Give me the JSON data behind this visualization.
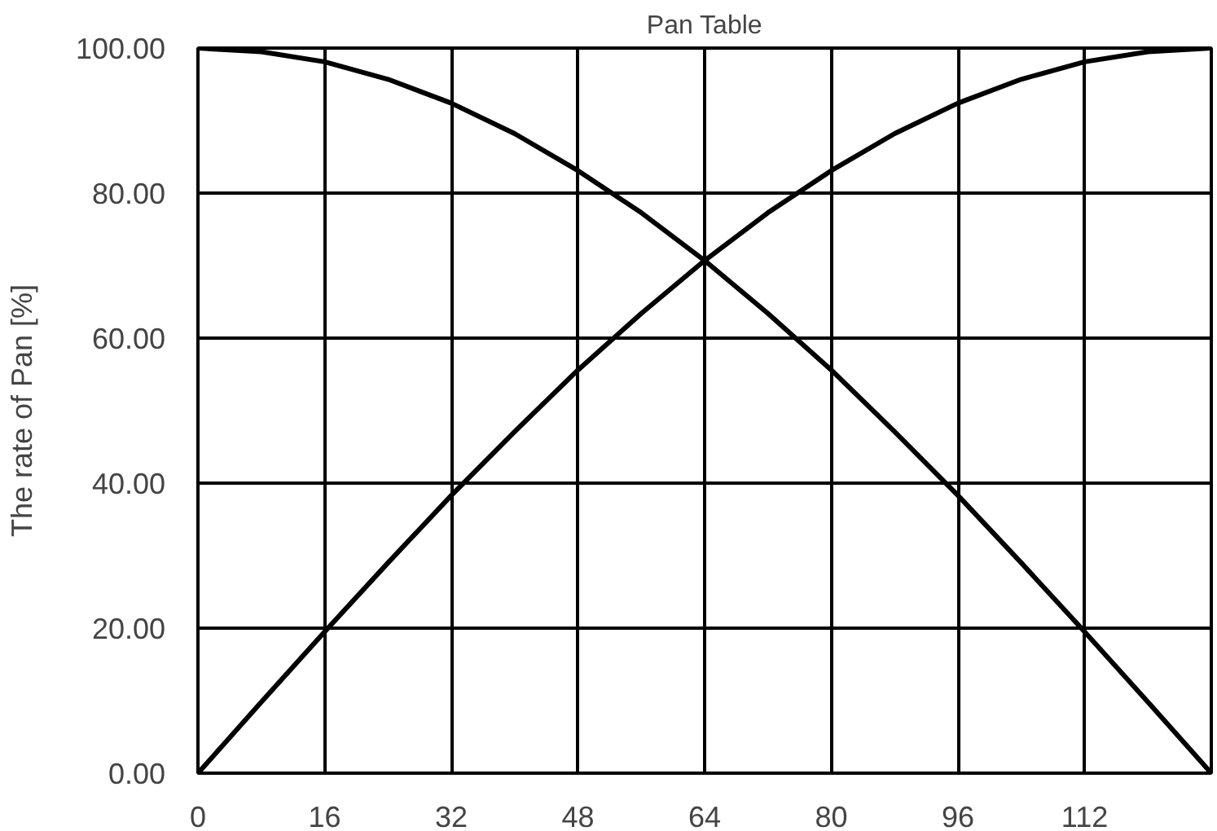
{
  "chart_data": {
    "type": "line",
    "title": "Pan Table",
    "ylabel": "The rate of Pan [%]",
    "x": [
      0,
      8,
      16,
      24,
      32,
      40,
      48,
      56,
      64,
      72,
      80,
      88,
      96,
      104,
      112,
      120,
      128
    ],
    "series": [
      {
        "color": "#000000",
        "values": [
          0,
          9.8,
          19.5,
          29.0,
          38.3,
          47.1,
          55.6,
          63.4,
          70.7,
          77.3,
          83.1,
          88.2,
          92.4,
          95.7,
          98.1,
          99.5,
          100
        ]
      },
      {
        "color": "#000000",
        "values": [
          100,
          99.5,
          98.1,
          95.7,
          92.4,
          88.2,
          83.1,
          77.3,
          70.7,
          63.4,
          55.6,
          47.1,
          38.3,
          29.0,
          19.5,
          9.8,
          0
        ]
      }
    ],
    "xlim": [
      0,
      128
    ],
    "xticks": [
      0,
      16,
      32,
      48,
      64,
      80,
      96,
      112,
      {
        "value": 128,
        "label": null
      }
    ],
    "ylim": [
      0,
      100
    ],
    "yticks": [
      {
        "value": 0,
        "label": "0.00"
      },
      {
        "value": 20,
        "label": "20.00"
      },
      {
        "value": 40,
        "label": "40.00"
      },
      {
        "value": 60,
        "label": "60.00"
      },
      {
        "value": 80,
        "label": "80.00"
      },
      {
        "value": 100,
        "label": "100.00"
      }
    ],
    "grid": true,
    "line_style": "solid"
  }
}
